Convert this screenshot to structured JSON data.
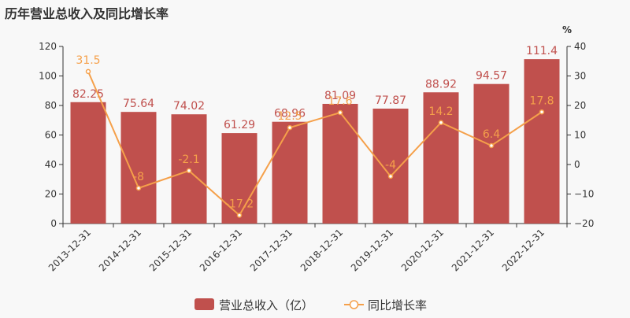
{
  "title": "历年营业总收入及同比增长率",
  "chart_data": {
    "type": "bar",
    "categories": [
      "2013-12-31",
      "2014-12-31",
      "2015-12-31",
      "2016-12-31",
      "2017-12-31",
      "2018-12-31",
      "2019-12-31",
      "2020-12-31",
      "2021-12-31",
      "2022-12-31"
    ],
    "series": [
      {
        "name": "营业总收入（亿）",
        "type": "bar",
        "axis": "left",
        "color": "#c0504d",
        "values": [
          82.25,
          75.64,
          74.02,
          61.29,
          68.96,
          81.09,
          77.87,
          88.92,
          94.57,
          111.4
        ],
        "labels": [
          "82.25",
          "75.64",
          "74.02",
          "61.29",
          "68.96",
          "81.09",
          "77.87",
          "88.92",
          "94.57",
          "111.4"
        ]
      },
      {
        "name": "同比增长率",
        "type": "line",
        "axis": "right",
        "color": "#f5a04a",
        "values": [
          31.5,
          -8,
          -2.1,
          -17.2,
          12.5,
          17.6,
          -4,
          14.2,
          6.4,
          17.8
        ],
        "labels": [
          "31.5",
          "-8",
          "-2.1",
          "-17.2",
          "12.5",
          "17.6",
          "-4",
          "14.2",
          "6.4",
          "17.8"
        ]
      }
    ],
    "y_left": {
      "min": 0,
      "max": 120,
      "ticks": [
        "0",
        "20",
        "40",
        "60",
        "80",
        "100",
        "120"
      ]
    },
    "y_right": {
      "min": -20,
      "max": 40,
      "ticks": [
        "−20",
        "−10",
        "0",
        "10",
        "20",
        "30",
        "40"
      ],
      "unit": "%"
    },
    "legend_position": "bottom-center",
    "grid": false
  }
}
